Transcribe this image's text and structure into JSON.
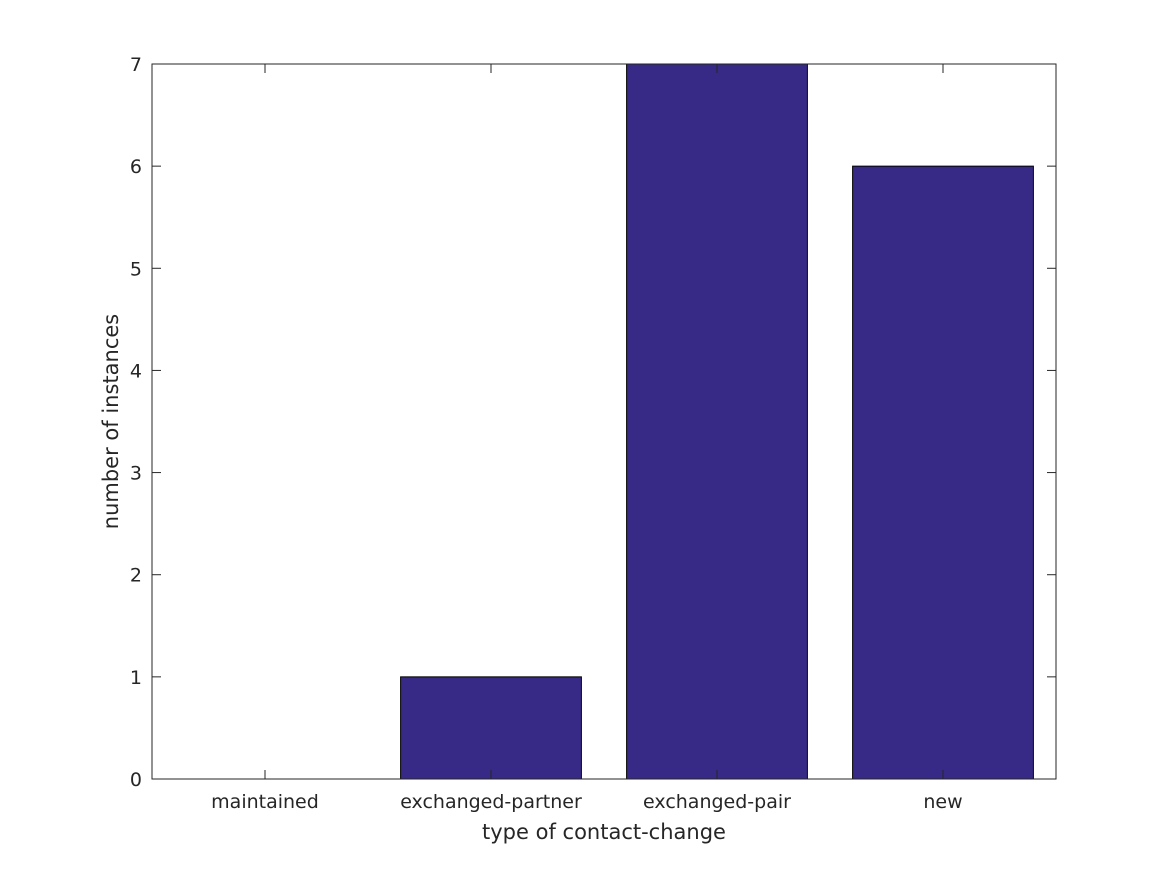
{
  "chart_data": {
    "type": "bar",
    "categories": [
      "maintained",
      "exchanged-partner",
      "exchanged-pair",
      "new"
    ],
    "values": [
      0,
      1,
      7,
      6
    ],
    "xlabel": "type of contact-change",
    "ylabel": "number of instances",
    "ylim": [
      0,
      7
    ],
    "yticks": [
      "0",
      "1",
      "2",
      "3",
      "4",
      "5",
      "6",
      "7"
    ],
    "grid": false,
    "bar_color": "#372a87",
    "bar_edge_color": "#000000"
  }
}
